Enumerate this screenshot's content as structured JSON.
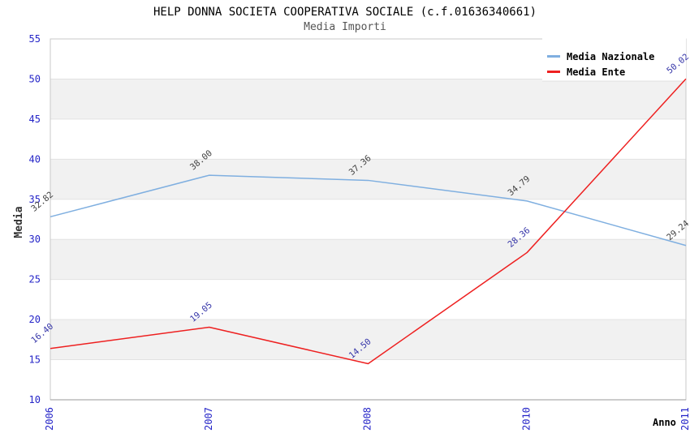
{
  "chart_data": {
    "type": "line",
    "title": "HELP DONNA SOCIETA COOPERATIVA SOCIALE (c.f.01636340661)",
    "subtitle": "Media Importi",
    "xlabel": "Anno",
    "ylabel": "Media",
    "categories": [
      "2006",
      "2007",
      "2008",
      "2010",
      "2011"
    ],
    "series": [
      {
        "name": "Media Nazionale",
        "color": "#7FAFE0",
        "label_color": "#3F3F3F",
        "values": [
          32.82,
          38.0,
          37.36,
          34.79,
          29.24
        ]
      },
      {
        "name": "Media Ente",
        "color": "#EE2020",
        "label_color": "#3434A8",
        "values": [
          16.4,
          19.05,
          14.5,
          28.36,
          50.02
        ]
      }
    ],
    "ylim": [
      10,
      55
    ],
    "ytick_step": 5,
    "yticks": [
      10,
      15,
      20,
      25,
      30,
      35,
      40,
      45,
      50,
      55
    ],
    "value_label_decimals": 2,
    "legend_position": "top-right",
    "grid": "horizontal-bands",
    "band_colors": [
      "#ffffff",
      "#f1f1f1"
    ],
    "gridline_color": "#e2e2e2",
    "plot_border_color": "#c9c9c9",
    "x_axis_line_color": "#999999",
    "tick_label_color": "#2525C8"
  }
}
